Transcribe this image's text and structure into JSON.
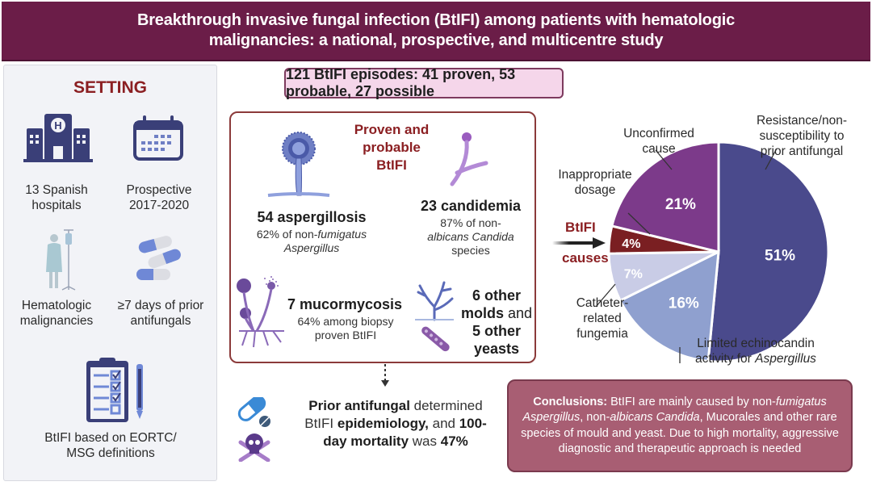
{
  "header": {
    "title": "Breakthrough invasive fungal infection (BtIFI) among patients with hematologic malignancies: a national, prospective, and multicentre study"
  },
  "setting": {
    "title": "SETTING",
    "items": [
      {
        "icon": "hospital-icon",
        "line1": "13 Spanish",
        "line2": "hospitals"
      },
      {
        "icon": "calendar-icon",
        "line1": "Prospective",
        "line2": "2017-2020"
      },
      {
        "icon": "patient-iv-icon",
        "line1": "Hematologic",
        "line2": "malignancies"
      },
      {
        "icon": "capsules-icon",
        "line1": "≥7 days of prior",
        "line2": "antifungals"
      },
      {
        "icon": "clipboard-checklist-icon",
        "line1": "BtIFI based on EORTC/",
        "line2": "MSG definitions"
      }
    ]
  },
  "episodes_banner": "121 BtIFI episodes: 41 proven, 53 probable, 27 possible",
  "fungi": {
    "title_line1": "Proven and",
    "title_line2": "probable",
    "title_line3": "BtIFI",
    "aspergillosis": {
      "head": "54 aspergillosis",
      "sub_a": "62% of non-",
      "sub_italic1": "fumigatus",
      "sub_italic2": "Aspergillus"
    },
    "candidemia": {
      "head": "23 candidemia",
      "sub_line1": "87% of non-",
      "sub_italic": "albicans Candida",
      "sub_line3": "species"
    },
    "mucormycosis": {
      "head": "7 mucormycosis",
      "sub_line1": "64% among biopsy",
      "sub_line2": "proven BtIFI"
    },
    "other": {
      "n1": "6 other",
      "bold2": "molds",
      "plain2": " and",
      "n3": "5 other",
      "bold4": "yeasts"
    }
  },
  "mortality": {
    "b1": "Prior antifungal",
    "t1": " determined",
    "t2": "BtIFI ",
    "b2": "epidemiology,",
    "t3": " and ",
    "b3": "100-",
    "b4": "day mortality",
    "t4": " was ",
    "b5": "47%"
  },
  "causes_arrow": {
    "top": "BtIFI",
    "bottom": "causes"
  },
  "chart_data": {
    "type": "pie",
    "title": "BtIFI causes",
    "slices": [
      {
        "label": "Resistance/non-susceptibility to prior antifungal",
        "value": 51,
        "display": "51%",
        "color": "#4a4a8c"
      },
      {
        "label": "Limited echinocandin activity for Aspergillus",
        "value": 16,
        "display": "16%",
        "color": "#8fa0cf"
      },
      {
        "label": "Catheter-related fungemia",
        "value": 7,
        "display": "7%",
        "color": "#c9cce6"
      },
      {
        "label": "Inappropriate dosage",
        "value": 4,
        "display": "4%",
        "color": "#7a1f22"
      },
      {
        "label": "Unconfirmed cause",
        "value": 21,
        "display": "21%",
        "color": "#7c3a8a"
      }
    ]
  },
  "pie_labels": {
    "resistance": [
      "Resistance/non-",
      "susceptibility to",
      "prior antifungal"
    ],
    "unconfirmed": [
      "Unconfirmed",
      "cause"
    ],
    "inappropriate": [
      "Inappropriate",
      "dosage"
    ],
    "catheter": [
      "Catheter-",
      "related",
      "fungemia"
    ],
    "limited_line1": "Limited echinocandin",
    "limited_line2a": "activity for ",
    "limited_line2b": "Aspergillus"
  },
  "conclusions": {
    "label": "Conclusions:",
    "t1": " BtIFI are mainly caused by non-",
    "i1": "fumigatus Aspergillus",
    "t2": ", non-",
    "i2": "albicans Candida",
    "t3": ", Mucorales and other rare species of mould and yeast. Due to high mortality, aggressive diagnostic and therapeutic approach is needed"
  },
  "colors": {
    "header_bg": "#6b1d48",
    "accent_red": "#8b1f22",
    "navy_icon": "#3a3f78",
    "banner_bg": "#f5d6ea",
    "conclusions_bg": "#a85e73"
  }
}
